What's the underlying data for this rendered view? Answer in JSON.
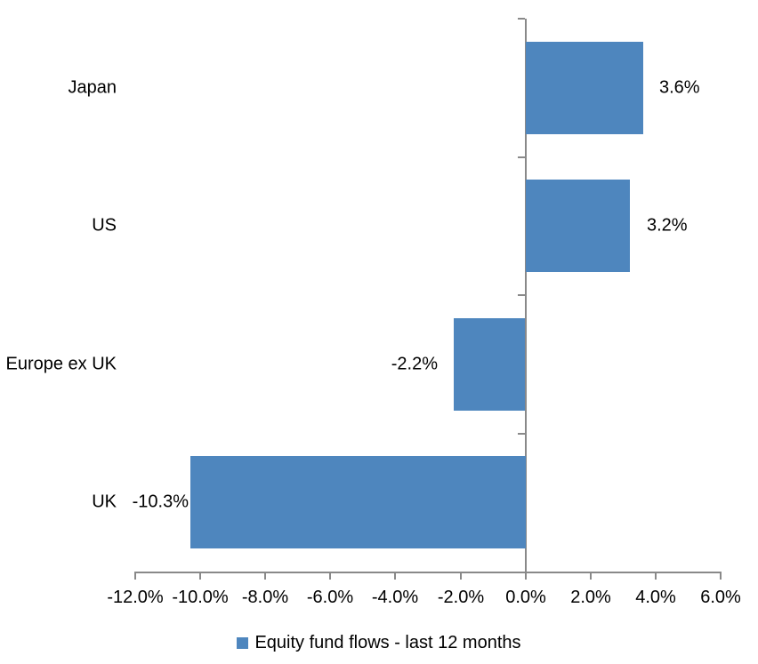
{
  "chart_data": {
    "type": "bar",
    "orientation": "horizontal",
    "title": "",
    "xlabel": "",
    "ylabel": "",
    "categories": [
      "Japan",
      "US",
      "Europe ex UK",
      "UK"
    ],
    "values": [
      3.6,
      3.2,
      -2.2,
      -10.3
    ],
    "data_labels": [
      "3.6%",
      "3.2%",
      "-2.2%",
      "-10.3%"
    ],
    "series": [
      {
        "name": "Equity fund flows - last 12 months",
        "values": [
          3.6,
          3.2,
          -2.2,
          -10.3
        ]
      }
    ],
    "xlim": [
      -12,
      6
    ],
    "x_ticks": [
      -12,
      -10,
      -8,
      -6,
      -4,
      -2,
      0,
      2,
      4,
      6
    ],
    "x_tick_labels": [
      "-12.0%",
      "-10.0%",
      "-8.0%",
      "-6.0%",
      "-4.0%",
      "-2.0%",
      "0.0%",
      "2.0%",
      "4.0%",
      "6.0%"
    ],
    "grid": false,
    "legend_position": "bottom",
    "bar_color": "#4E86BE",
    "axis_color": "#898989",
    "text_color": "#000000"
  },
  "legend": {
    "label": "Equity fund flows - last 12 months"
  }
}
